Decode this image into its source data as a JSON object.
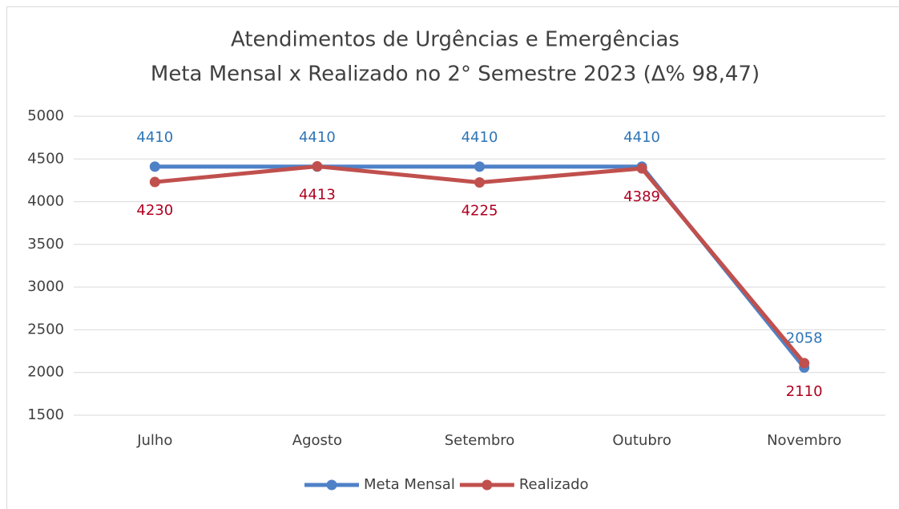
{
  "chart_data": {
    "type": "line",
    "title": "Atendimentos de Urgências e Emergências",
    "subtitle": "Meta Mensal x Realizado no 2° Semestre 2023 (Δ% 98,47)",
    "categories": [
      "Julho",
      "Agosto",
      "Setembro",
      "Outubro",
      "Novembro"
    ],
    "series": [
      {
        "name": "Meta Mensal",
        "color": "#4f81c7",
        "label_color": "#2e75b6",
        "label_position": "above",
        "values": [
          4410,
          4410,
          4410,
          4410,
          2058
        ]
      },
      {
        "name": "Realizado",
        "color": "#c0504d",
        "label_color": "#b00020",
        "label_position": "below",
        "values": [
          4230,
          4413,
          4225,
          4389,
          2110
        ]
      }
    ],
    "ylim": [
      1500,
      5000
    ],
    "yticks": [
      1500,
      2000,
      2500,
      3000,
      3500,
      4000,
      4500,
      5000
    ],
    "grid": true,
    "legend": "bottom"
  }
}
